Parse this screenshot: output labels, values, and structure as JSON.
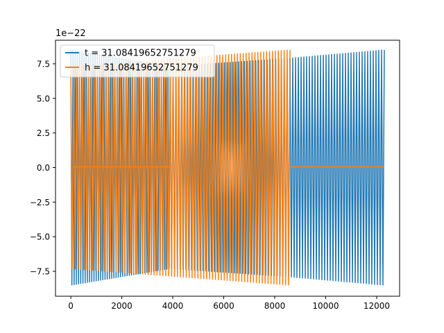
{
  "chart_data": {
    "type": "line",
    "title": "",
    "xlabel": "",
    "ylabel": "",
    "y_offset_text": "1e−22",
    "xlim": [
      -600,
      12900
    ],
    "ylim": [
      -9.3,
      9.2
    ],
    "grid": false,
    "legend_position": "top-left",
    "xticks": [
      0,
      2000,
      4000,
      6000,
      8000,
      10000,
      12000
    ],
    "xtick_labels": [
      "0",
      "2000",
      "4000",
      "6000",
      "8000",
      "10000",
      "12000"
    ],
    "yticks": [
      -7.5,
      -5.0,
      -2.5,
      0.0,
      2.5,
      5.0,
      7.5
    ],
    "ytick_labels": [
      "−7.5",
      "−5.0",
      "−2.5",
      "0.0",
      "2.5",
      "5.0",
      "7.5"
    ],
    "series": [
      {
        "name": "t = 31.08419652751279",
        "color": "#1f77b4",
        "segments": [
          {
            "kind": "oscillation",
            "x_start": 0,
            "x_end": 3900,
            "amp_start": 8.5,
            "amp_end": 7.3,
            "cycles": 45
          },
          {
            "kind": "oscillation",
            "x_start": 3900,
            "x_end": 8600,
            "amp_start": 7.3,
            "amp_end": 7.9,
            "cycles": 42
          },
          {
            "kind": "oscillation",
            "x_start": 8600,
            "x_end": 12300,
            "amp_start": 7.9,
            "amp_end": 8.5,
            "cycles": 34
          }
        ]
      },
      {
        "name": "h = 31.08419652751279",
        "color": "#ff7f0e",
        "segments": [
          {
            "kind": "oscillation",
            "x_start": 0,
            "x_end": 8600,
            "amp_start": 7.3,
            "amp_end": 8.5,
            "cycles": 75
          },
          {
            "kind": "flat",
            "x_start": 80,
            "x_end": 3900,
            "y": 0.05
          },
          {
            "kind": "flat",
            "x_start": 8600,
            "x_end": 12300,
            "y": 0.05
          }
        ]
      }
    ]
  }
}
